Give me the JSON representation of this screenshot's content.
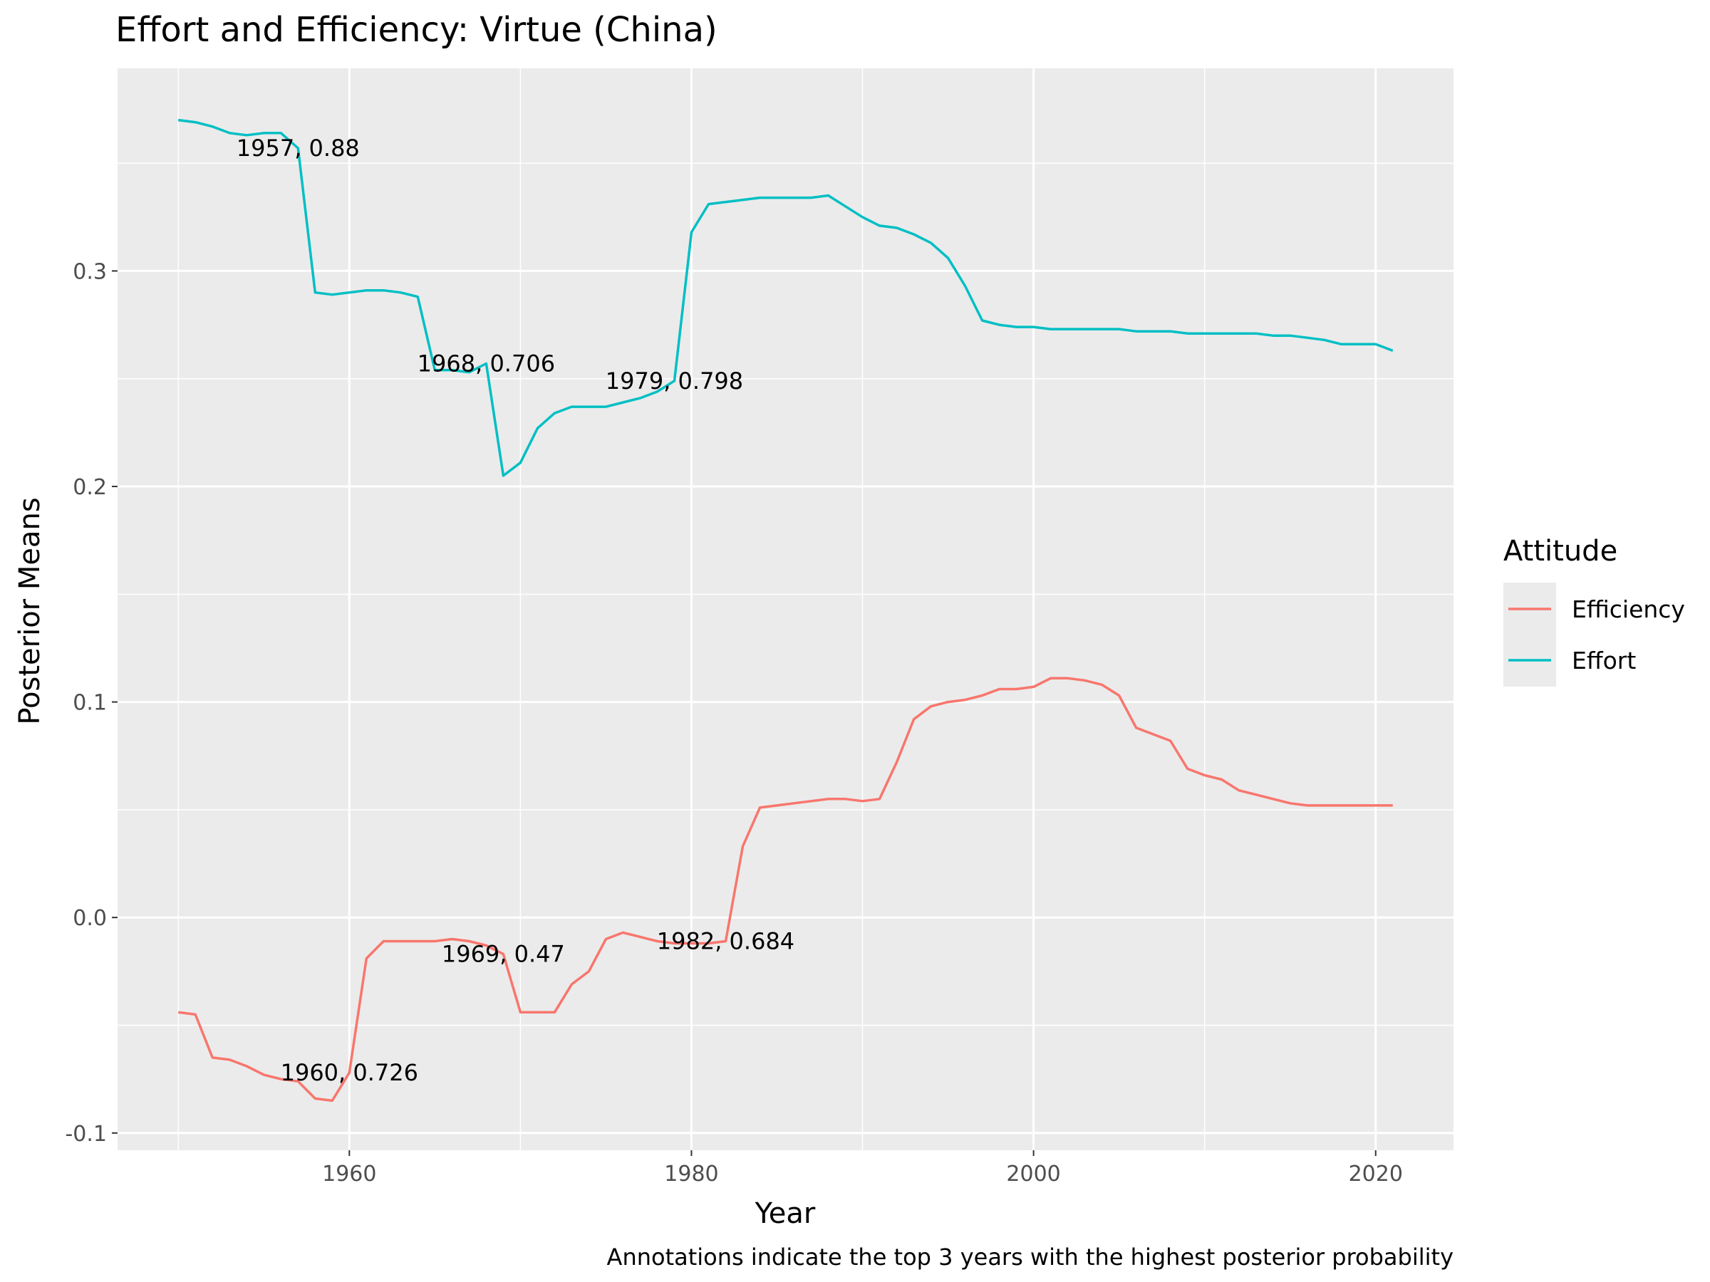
{
  "chart_data": {
    "type": "line",
    "title": "Effort and Efficiency: Virtue (China)",
    "xlabel": "Year",
    "ylabel": "Posterior Means",
    "caption": "Annotations indicate the top 3 years with the highest posterior probability",
    "xlim": [
      1946.45,
      2024.55
    ],
    "ylim": [
      -0.108,
      0.394
    ],
    "x_ticks": [
      1960,
      1980,
      2000,
      2020
    ],
    "x_tick_labels": [
      "1960",
      "1980",
      "2000",
      "2020"
    ],
    "y_ticks": [
      -0.1,
      0.0,
      0.1,
      0.2,
      0.3
    ],
    "y_tick_labels": [
      "-0.1",
      "0.0",
      "0.1",
      "0.2",
      "0.3"
    ],
    "grid": true,
    "background": "#ebebeb",
    "legend": {
      "title": "Attitude",
      "position": "right",
      "entries": [
        "Efficiency",
        "Effort"
      ]
    },
    "x": [
      1950,
      1951,
      1952,
      1953,
      1954,
      1955,
      1956,
      1957,
      1958,
      1959,
      1960,
      1961,
      1962,
      1963,
      1964,
      1965,
      1966,
      1967,
      1968,
      1969,
      1970,
      1971,
      1972,
      1973,
      1974,
      1975,
      1976,
      1977,
      1978,
      1979,
      1980,
      1981,
      1982,
      1983,
      1984,
      1985,
      1986,
      1987,
      1988,
      1989,
      1990,
      1991,
      1992,
      1993,
      1994,
      1995,
      1996,
      1997,
      1998,
      1999,
      2000,
      2001,
      2002,
      2003,
      2004,
      2005,
      2006,
      2007,
      2008,
      2009,
      2010,
      2011,
      2012,
      2013,
      2014,
      2015,
      2016,
      2017,
      2018,
      2019,
      2020,
      2021
    ],
    "series": [
      {
        "name": "Efficiency",
        "color": "#f8766d",
        "values": [
          -0.044,
          -0.045,
          -0.065,
          -0.066,
          -0.069,
          -0.073,
          -0.075,
          -0.076,
          -0.084,
          -0.085,
          -0.072,
          -0.019,
          -0.011,
          -0.011,
          -0.011,
          -0.011,
          -0.01,
          -0.011,
          -0.013,
          -0.017,
          -0.044,
          -0.044,
          -0.044,
          -0.031,
          -0.025,
          -0.01,
          -0.007,
          -0.009,
          -0.011,
          -0.012,
          -0.012,
          -0.012,
          -0.011,
          0.033,
          0.051,
          0.052,
          0.053,
          0.054,
          0.055,
          0.055,
          0.054,
          0.055,
          0.072,
          0.092,
          0.098,
          0.1,
          0.101,
          0.103,
          0.106,
          0.106,
          0.107,
          0.111,
          0.111,
          0.11,
          0.108,
          0.103,
          0.088,
          0.085,
          0.082,
          0.069,
          0.066,
          0.064,
          0.059,
          0.057,
          0.055,
          0.053,
          0.052,
          0.052,
          0.052,
          0.052,
          0.052,
          0.052
        ]
      },
      {
        "name": "Effort",
        "color": "#00bfc4",
        "values": [
          0.37,
          0.369,
          0.367,
          0.364,
          0.363,
          0.364,
          0.364,
          0.357,
          0.29,
          0.289,
          0.29,
          0.291,
          0.291,
          0.29,
          0.288,
          0.254,
          0.254,
          0.253,
          0.257,
          0.205,
          0.211,
          0.227,
          0.234,
          0.237,
          0.237,
          0.237,
          0.239,
          0.241,
          0.244,
          0.249,
          0.318,
          0.331,
          0.332,
          0.333,
          0.334,
          0.334,
          0.334,
          0.334,
          0.335,
          0.33,
          0.325,
          0.321,
          0.32,
          0.317,
          0.313,
          0.306,
          0.293,
          0.277,
          0.275,
          0.274,
          0.274,
          0.273,
          0.273,
          0.273,
          0.273,
          0.273,
          0.272,
          0.272,
          0.272,
          0.271,
          0.271,
          0.271,
          0.271,
          0.271,
          0.27,
          0.27,
          0.269,
          0.268,
          0.266,
          0.266,
          0.266,
          0.263
        ]
      }
    ],
    "annotations": [
      {
        "x": 1957,
        "y": 0.357,
        "text": "1957, 0.88"
      },
      {
        "x": 1968,
        "y": 0.257,
        "text": "1968, 0.706"
      },
      {
        "x": 1979,
        "y": 0.249,
        "text": "1979, 0.798"
      },
      {
        "x": 1969,
        "y": -0.017,
        "text": "1969, 0.47"
      },
      {
        "x": 1982,
        "y": -0.011,
        "text": "1982, 0.684"
      },
      {
        "x": 1960,
        "y": -0.072,
        "text": "1960, 0.726"
      }
    ]
  }
}
